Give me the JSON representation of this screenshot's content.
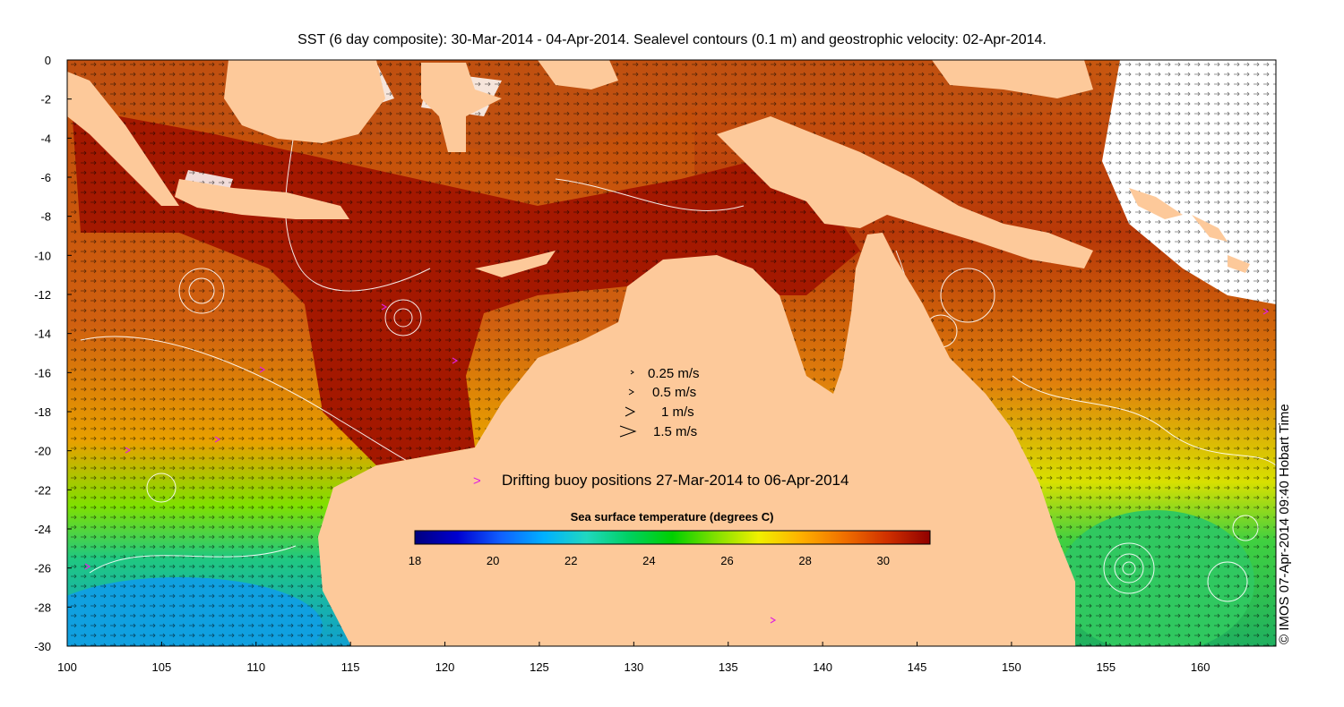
{
  "title": "SST (6 day composite): 30-Mar-2014 - 04-Apr-2014. Sealevel contours (0.1 m) and geostrophic velocity: 02-Apr-2014.",
  "credit": "© IMOS 07-Apr-2014 09:40 Hobart Time",
  "map": {
    "lon_range": [
      100,
      164
    ],
    "lat_range": [
      -30,
      0
    ],
    "x_ticks": [
      100,
      105,
      110,
      115,
      120,
      125,
      130,
      135,
      140,
      145,
      150,
      155,
      160
    ],
    "y_ticks": [
      0,
      -2,
      -4,
      -6,
      -8,
      -10,
      -12,
      -14,
      -16,
      -18,
      -20,
      -22,
      -24,
      -26,
      -28,
      -30
    ]
  },
  "velocity_legend": [
    "0.25 m/s",
    "0.5 m/s",
    "1 m/s",
    "1.5 m/s"
  ],
  "buoy_legend": {
    "symbol": ">",
    "label": "Drifting buoy positions 27-Mar-2014 to 06-Apr-2014",
    "color": "#e020e0"
  },
  "colorbar": {
    "title": "Sea surface temperature (degrees C)",
    "range": [
      18,
      31.2
    ],
    "ticks": [
      "18",
      "20",
      "22",
      "24",
      "26",
      "28",
      "30"
    ],
    "colors": [
      "#00007f",
      "#0000d0",
      "#1060ff",
      "#00b0ff",
      "#20d8c0",
      "#00d060",
      "#00d000",
      "#80e000",
      "#f0f000",
      "#ffb000",
      "#f07000",
      "#d03000",
      "#900000"
    ]
  },
  "colors": {
    "land": "#fdc99a",
    "ocean_warm": "#a01800",
    "contour": "#ffffff",
    "arrow": "#000000"
  }
}
